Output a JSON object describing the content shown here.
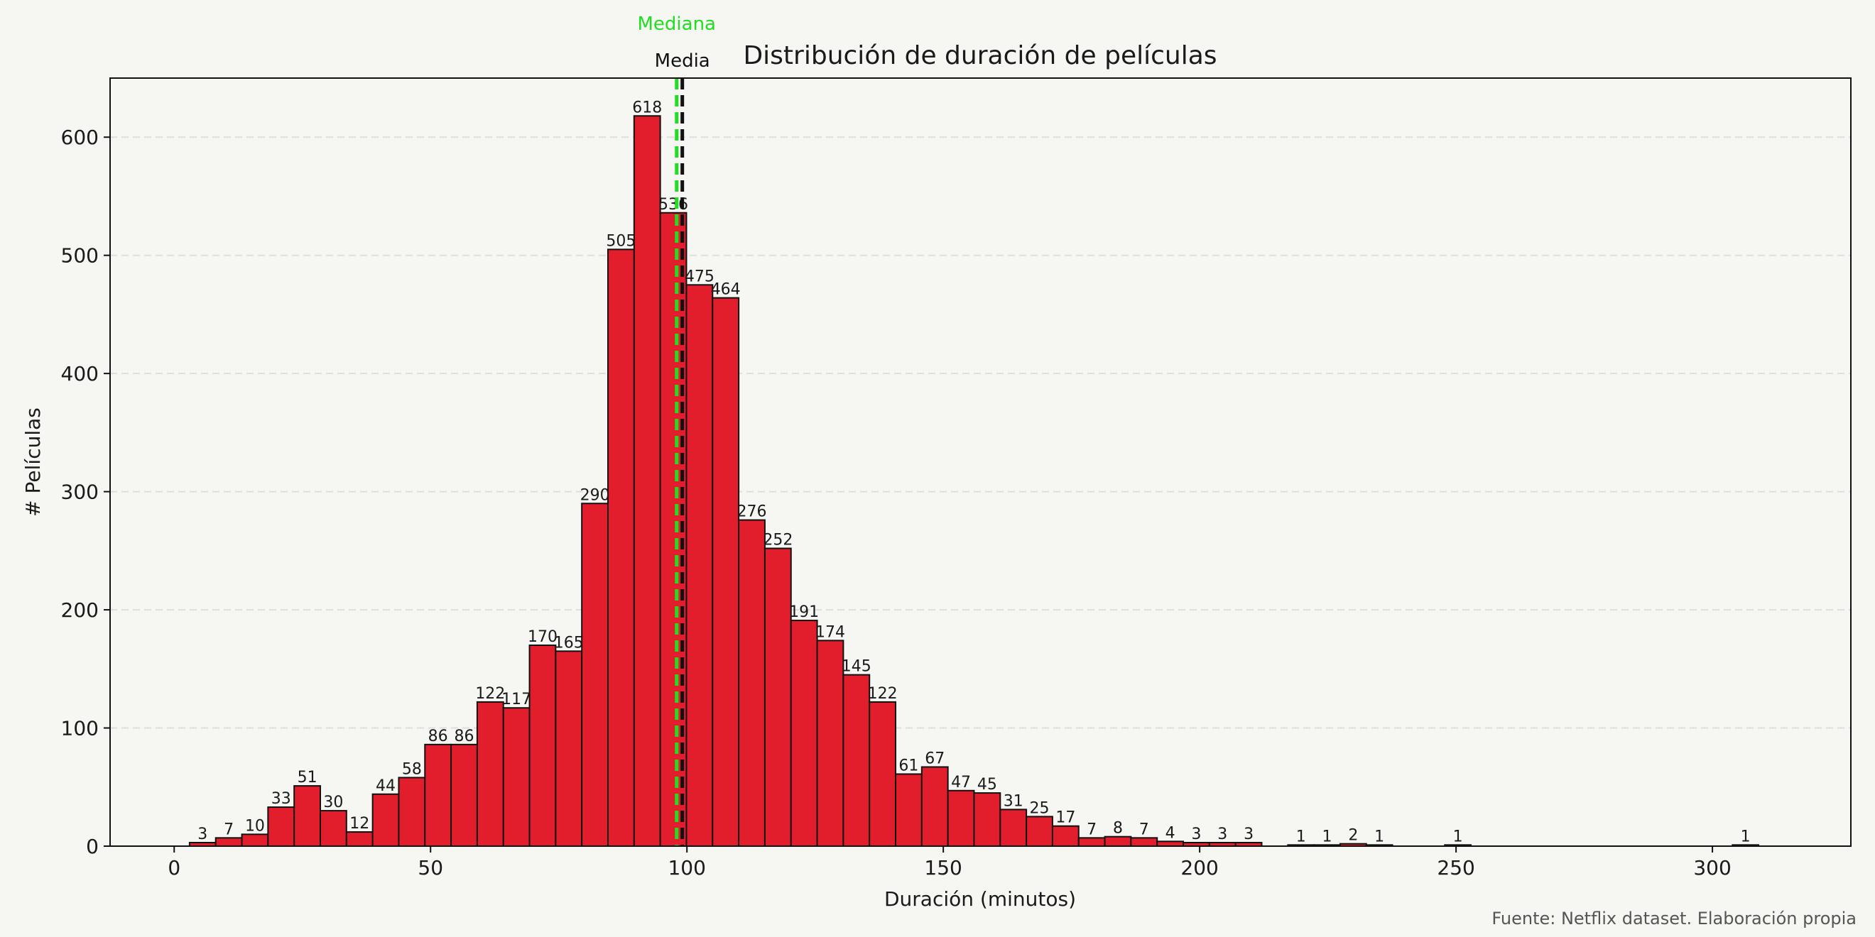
{
  "chart_data": {
    "type": "bar",
    "title": "Distribución de duración de películas",
    "xlabel": "Duración (minutos)",
    "ylabel": "# Películas",
    "source": "Fuente: Netflix dataset. Elaboración propia",
    "bin_width": 5.1,
    "x_start": 3,
    "xlim": [
      -12.5,
      327
    ],
    "ylim": [
      0,
      650
    ],
    "xticks": [
      0,
      50,
      100,
      150,
      200,
      250,
      300
    ],
    "yticks": [
      0,
      100,
      200,
      300,
      400,
      500,
      600
    ],
    "grid": "y-dashed",
    "bar_color": "#e31e2c",
    "values": [
      3,
      7,
      10,
      33,
      51,
      30,
      12,
      44,
      58,
      86,
      86,
      122,
      117,
      170,
      165,
      290,
      505,
      618,
      536,
      475,
      464,
      276,
      252,
      191,
      174,
      145,
      122,
      61,
      67,
      47,
      45,
      31,
      25,
      17,
      7,
      8,
      7,
      4,
      3,
      3,
      3,
      0,
      1,
      1,
      2,
      1,
      0,
      0,
      1,
      0,
      0,
      0,
      0,
      0,
      0,
      0,
      0,
      0,
      0,
      1
    ],
    "reference_lines": [
      {
        "label": "Mediana",
        "x": 98,
        "color": "#22dd22"
      },
      {
        "label": "Media",
        "x": 99.1,
        "color": "#111111"
      }
    ]
  }
}
